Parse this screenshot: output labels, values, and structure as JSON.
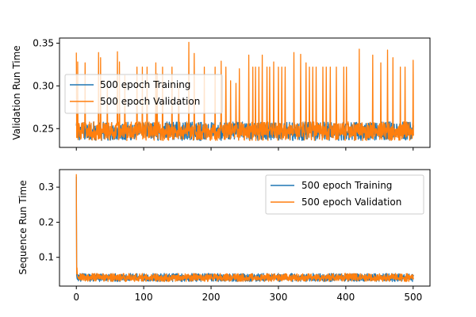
{
  "chart_data": [
    {
      "type": "line",
      "panel": "top",
      "title": "",
      "xlabel": "",
      "ylabel": "Validation Run Time",
      "xlim": [
        -25,
        525
      ],
      "ylim": [
        0.228,
        0.356
      ],
      "x_ticks": [
        0,
        100,
        200,
        300,
        400,
        500
      ],
      "x_tick_labels_visible": false,
      "y_ticks": [
        0.25,
        0.3,
        0.35
      ],
      "y_tick_labels": [
        "0.25",
        "0.30",
        "0.35"
      ],
      "grid": false,
      "legend_position": "center-left",
      "baseline_low": 0.236,
      "baseline_high": 0.258,
      "spikes": [
        {
          "x": 0,
          "y": 0.339
        },
        {
          "x": 2,
          "y": 0.328
        },
        {
          "x": 13,
          "y": 0.327
        },
        {
          "x": 33,
          "y": 0.339
        },
        {
          "x": 36,
          "y": 0.333
        },
        {
          "x": 46,
          "y": 0.306
        },
        {
          "x": 61,
          "y": 0.34
        },
        {
          "x": 64,
          "y": 0.328
        },
        {
          "x": 72,
          "y": 0.312
        },
        {
          "x": 90,
          "y": 0.322
        },
        {
          "x": 98,
          "y": 0.322
        },
        {
          "x": 105,
          "y": 0.322
        },
        {
          "x": 118,
          "y": 0.327
        },
        {
          "x": 120,
          "y": 0.314
        },
        {
          "x": 128,
          "y": 0.322
        },
        {
          "x": 142,
          "y": 0.322
        },
        {
          "x": 152,
          "y": 0.303
        },
        {
          "x": 167,
          "y": 0.351
        },
        {
          "x": 175,
          "y": 0.338
        },
        {
          "x": 190,
          "y": 0.322
        },
        {
          "x": 206,
          "y": 0.322
        },
        {
          "x": 215,
          "y": 0.329
        },
        {
          "x": 222,
          "y": 0.322
        },
        {
          "x": 229,
          "y": 0.306
        },
        {
          "x": 237,
          "y": 0.303
        },
        {
          "x": 242,
          "y": 0.32
        },
        {
          "x": 256,
          "y": 0.336
        },
        {
          "x": 262,
          "y": 0.322
        },
        {
          "x": 266,
          "y": 0.322
        },
        {
          "x": 271,
          "y": 0.322
        },
        {
          "x": 276,
          "y": 0.336
        },
        {
          "x": 283,
          "y": 0.322
        },
        {
          "x": 287,
          "y": 0.322
        },
        {
          "x": 293,
          "y": 0.328
        },
        {
          "x": 300,
          "y": 0.322
        },
        {
          "x": 305,
          "y": 0.322
        },
        {
          "x": 310,
          "y": 0.322
        },
        {
          "x": 323,
          "y": 0.339
        },
        {
          "x": 333,
          "y": 0.337
        },
        {
          "x": 341,
          "y": 0.327
        },
        {
          "x": 346,
          "y": 0.322
        },
        {
          "x": 351,
          "y": 0.322
        },
        {
          "x": 356,
          "y": 0.322
        },
        {
          "x": 366,
          "y": 0.322
        },
        {
          "x": 371,
          "y": 0.322
        },
        {
          "x": 377,
          "y": 0.322
        },
        {
          "x": 386,
          "y": 0.322
        },
        {
          "x": 397,
          "y": 0.322
        },
        {
          "x": 401,
          "y": 0.322
        },
        {
          "x": 420,
          "y": 0.343
        },
        {
          "x": 440,
          "y": 0.336
        },
        {
          "x": 452,
          "y": 0.327
        },
        {
          "x": 462,
          "y": 0.342
        },
        {
          "x": 470,
          "y": 0.333
        },
        {
          "x": 481,
          "y": 0.322
        },
        {
          "x": 488,
          "y": 0.322
        },
        {
          "x": 500,
          "y": 0.33
        }
      ],
      "series": [
        {
          "name": "500 epoch Training",
          "color": "#1f77b4"
        },
        {
          "name": "500 epoch Validation",
          "color": "#ff7f0e"
        }
      ]
    },
    {
      "type": "line",
      "panel": "bottom",
      "title": "",
      "xlabel": "",
      "ylabel": "Sequence Run Time",
      "xlim": [
        -25,
        525
      ],
      "ylim": [
        0.018,
        0.35
      ],
      "x_ticks": [
        0,
        100,
        200,
        300,
        400,
        500
      ],
      "x_tick_labels": [
        "0",
        "100",
        "200",
        "300",
        "400",
        "500"
      ],
      "y_ticks": [
        0.1,
        0.2,
        0.3
      ],
      "y_tick_labels": [
        "0.1",
        "0.2",
        "0.3"
      ],
      "grid": false,
      "legend_position": "top-right",
      "baseline_low": 0.031,
      "baseline_high": 0.054,
      "spikes": [
        {
          "x": 0,
          "y": 0.337
        },
        {
          "x": 1,
          "y": 0.07
        }
      ],
      "series": [
        {
          "name": "500 epoch Training",
          "color": "#1f77b4"
        },
        {
          "name": "500 epoch Validation",
          "color": "#ff7f0e"
        }
      ]
    }
  ]
}
